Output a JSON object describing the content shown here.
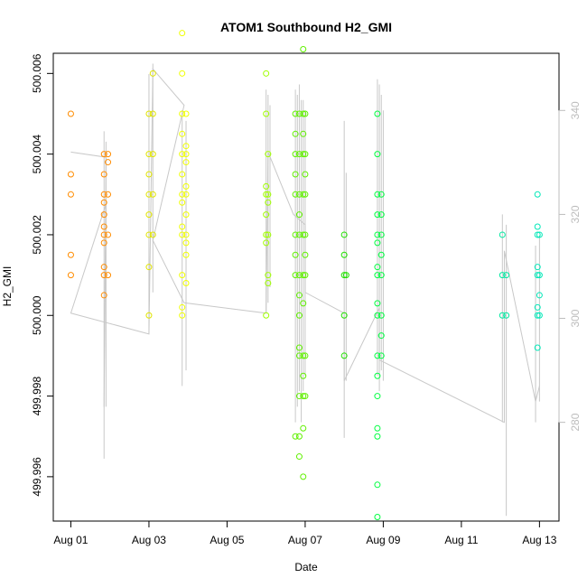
{
  "chart_data": {
    "type": "scatter",
    "title": "ATOM1 Southbound H2_GMI",
    "xlabel": "Date",
    "ylabel": "H2_GMI",
    "x_ticks": [
      "Aug 01",
      "Aug 03",
      "Aug 05",
      "Aug 07",
      "Aug 09",
      "Aug 11",
      "Aug 13"
    ],
    "x_tick_days": [
      1,
      3,
      5,
      7,
      9,
      11,
      13
    ],
    "xlim_days": [
      0.55,
      13.5
    ],
    "y_ticks": [
      "499.996",
      "499.998",
      "500.000",
      "500.002",
      "500.004",
      "500.006"
    ],
    "y_tick_values": [
      499.996,
      499.998,
      500.0,
      500.002,
      500.004,
      500.006
    ],
    "ylim": [
      499.9949,
      500.0065
    ],
    "y2_ticks": [
      "280",
      "300",
      "320",
      "340"
    ],
    "y2_tick_values": [
      280,
      300,
      320,
      340
    ],
    "y2lim": [
      261,
      351
    ],
    "grid": false,
    "line_color": "#c8c8c8",
    "secondary_series": {
      "axis": "right",
      "points": [
        [
          1.0,
          332
        ],
        [
          1.9,
          331
        ],
        [
          1.85,
          283
        ],
        [
          1.9,
          322
        ],
        [
          1.0,
          301
        ],
        [
          3.0,
          297
        ],
        [
          3.1,
          348
        ],
        [
          3.9,
          341
        ],
        [
          3.1,
          315
        ],
        [
          3.9,
          303
        ],
        [
          6.0,
          301
        ],
        [
          6.05,
          332
        ],
        [
          6.7,
          320
        ],
        [
          7.0,
          318
        ],
        [
          7.0,
          305
        ],
        [
          8.0,
          301
        ],
        [
          8.0,
          288
        ],
        [
          8.9,
          302
        ],
        [
          8.9,
          292
        ],
        [
          12.1,
          280
        ],
        [
          12.1,
          313
        ],
        [
          12.9,
          284
        ],
        [
          13.0,
          287
        ]
      ],
      "spikes": [
        [
          1.85,
          273,
          336
        ],
        [
          1.9,
          283,
          334
        ],
        [
          3.0,
          297,
          347
        ],
        [
          3.1,
          305,
          349
        ],
        [
          3.85,
          287,
          340
        ],
        [
          3.95,
          290,
          338
        ],
        [
          6.0,
          301,
          344
        ],
        [
          6.05,
          303,
          343
        ],
        [
          6.1,
          306,
          341
        ],
        [
          6.75,
          280,
          344
        ],
        [
          6.8,
          283,
          343
        ],
        [
          6.85,
          286,
          345
        ],
        [
          6.9,
          280,
          342
        ],
        [
          6.95,
          286,
          342
        ],
        [
          7.0,
          289,
          340
        ],
        [
          8.0,
          277,
          338
        ],
        [
          8.05,
          288,
          328
        ],
        [
          8.85,
          289,
          346
        ],
        [
          8.9,
          286,
          345
        ],
        [
          8.95,
          290,
          343
        ],
        [
          9.0,
          288,
          340
        ],
        [
          12.05,
          280,
          320
        ],
        [
          12.15,
          262,
          318
        ],
        [
          12.9,
          280,
          314
        ],
        [
          13.0,
          284,
          316
        ]
      ]
    },
    "series": [
      {
        "day": 1.0,
        "color": "#ff8c00",
        "values": [
          500.005,
          500.003,
          500.001,
          500.0035,
          500.0015
        ]
      },
      {
        "day": 1.85,
        "color": "#ff8c00",
        "values": [
          500.004,
          500.003,
          500.002,
          500.001,
          500.0025,
          500.0005,
          500.0018,
          500.0028,
          500.0012,
          500.0022,
          500.0035
        ]
      },
      {
        "day": 1.95,
        "color": "#ff8c00",
        "values": [
          500.004,
          500.002,
          500.001,
          500.003,
          500.0038
        ]
      },
      {
        "day": 3.0,
        "color": "#e0e400",
        "values": [
          500.005,
          500.004,
          500.003,
          500.002,
          500.0,
          500.0035,
          500.0025,
          500.0012
        ]
      },
      {
        "day": 3.1,
        "color": "#e0e400",
        "values": [
          500.006,
          500.005,
          500.004,
          500.003,
          500.002
        ]
      },
      {
        "day": 3.85,
        "color": "#f0ff00",
        "values": [
          500.007,
          500.006,
          500.005,
          500.004,
          500.003,
          500.002,
          500.001,
          500.0,
          500.0045,
          500.0035,
          500.0028,
          500.0022,
          500.0002
        ]
      },
      {
        "day": 3.95,
        "color": "#f0ff00",
        "values": [
          500.005,
          500.004,
          500.003,
          500.002,
          500.0038,
          500.0032,
          500.0025,
          500.0018,
          500.0015,
          500.0042,
          500.0008
        ]
      },
      {
        "day": 6.0,
        "color": "#a0ff00",
        "values": [
          500.006,
          500.005,
          500.003,
          500.002,
          500.0,
          500.0025,
          500.0032,
          500.0018
        ]
      },
      {
        "day": 6.05,
        "color": "#a0ff00",
        "values": [
          500.004,
          500.003,
          500.002,
          500.001,
          500.0028,
          500.0008
        ]
      },
      {
        "day": 6.75,
        "color": "#60f000",
        "values": [
          500.005,
          500.004,
          500.003,
          500.002,
          500.001,
          499.997,
          500.0045,
          500.0035,
          500.0015
        ]
      },
      {
        "day": 6.85,
        "color": "#60f000",
        "values": [
          500.005,
          500.004,
          500.003,
          500.002,
          500.001,
          499.999,
          499.998,
          499.997,
          500.0,
          499.9992,
          499.9965,
          500.0025,
          500.0005
        ]
      },
      {
        "day": 6.95,
        "color": "#60f000",
        "values": [
          500.005,
          500.004,
          500.003,
          500.002,
          500.001,
          499.999,
          499.998,
          499.996,
          500.0003,
          499.9985,
          500.0066,
          500.0045,
          499.9972
        ]
      },
      {
        "day": 7.0,
        "color": "#60f000",
        "values": [
          500.005,
          500.004,
          500.003,
          500.002,
          500.001,
          499.999,
          499.998,
          500.0035,
          500.0015
        ]
      },
      {
        "day": 8.0,
        "color": "#20e000",
        "values": [
          500.002,
          500.001,
          500.0,
          499.999,
          500.0015
        ]
      },
      {
        "day": 8.05,
        "color": "#20e000",
        "values": [
          500.001
        ]
      },
      {
        "day": 8.85,
        "color": "#00ff40",
        "values": [
          500.005,
          500.004,
          500.003,
          500.002,
          500.001,
          500.0,
          499.999,
          499.998,
          499.997,
          499.995,
          499.9958,
          499.9985,
          499.9972,
          500.0025,
          500.0018,
          500.0012,
          500.0003
        ]
      },
      {
        "day": 8.95,
        "color": "#00ff40",
        "values": [
          500.003,
          500.002,
          500.001,
          500.0,
          499.9995,
          499.999,
          500.0015,
          500.0025
        ]
      },
      {
        "day": 12.05,
        "color": "#00e8a0",
        "values": [
          500.002,
          500.001,
          500.0
        ]
      },
      {
        "day": 12.15,
        "color": "#00e8a0",
        "values": [
          500.001,
          500.0
        ]
      },
      {
        "day": 12.95,
        "color": "#00e8b8",
        "values": [
          500.003,
          500.002,
          500.001,
          500.0,
          500.0022,
          500.0012,
          500.0002,
          499.9992
        ]
      },
      {
        "day": 13.0,
        "color": "#00e8b8",
        "values": [
          500.002,
          500.001,
          500.0,
          500.0005
        ]
      }
    ]
  }
}
